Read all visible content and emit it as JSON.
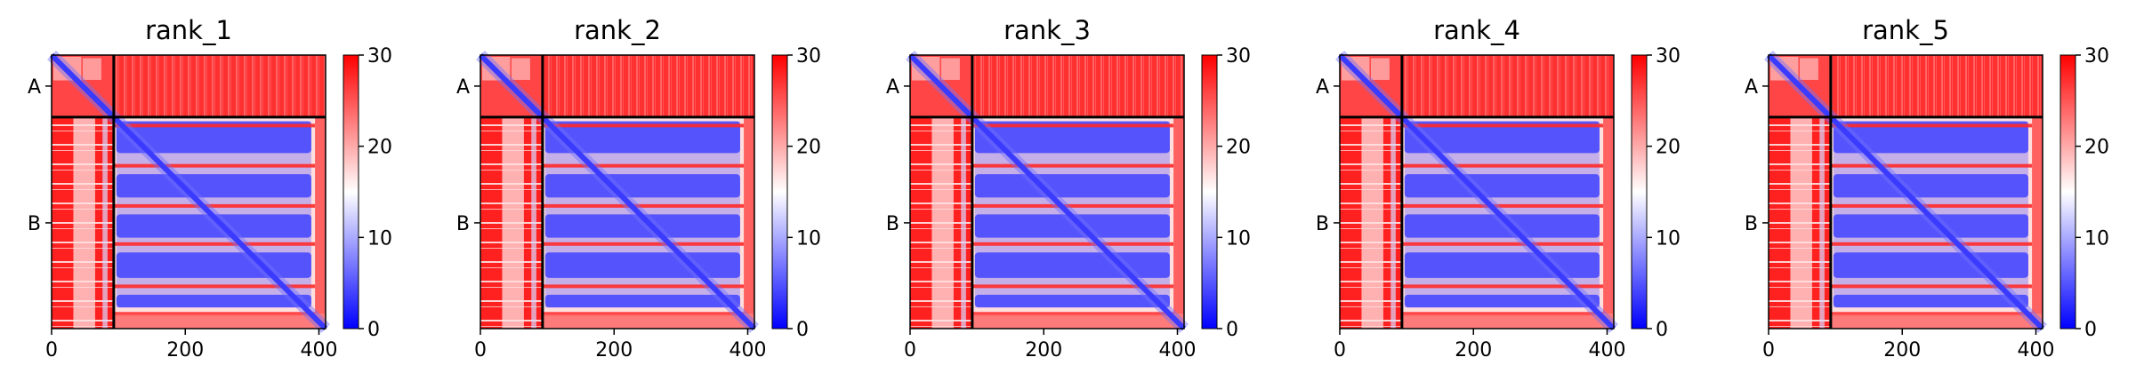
{
  "chart_data": [
    {
      "type": "heatmap",
      "title": "rank_1",
      "chains": [
        "A",
        "B"
      ],
      "chain_boundary": 93,
      "length": 410,
      "xticks": [
        0,
        200,
        400
      ],
      "colorbar": {
        "min": 0,
        "max": 30,
        "ticks": [
          0,
          10,
          20,
          30
        ],
        "colors": [
          "#0000ff",
          "#ffffff",
          "#ff0000"
        ]
      }
    },
    {
      "type": "heatmap",
      "title": "rank_2",
      "chains": [
        "A",
        "B"
      ],
      "chain_boundary": 93,
      "length": 410,
      "xticks": [
        0,
        200,
        400
      ],
      "colorbar": {
        "min": 0,
        "max": 30,
        "ticks": [
          0,
          10,
          20,
          30
        ],
        "colors": [
          "#0000ff",
          "#ffffff",
          "#ff0000"
        ]
      }
    },
    {
      "type": "heatmap",
      "title": "rank_3",
      "chains": [
        "A",
        "B"
      ],
      "chain_boundary": 93,
      "length": 410,
      "xticks": [
        0,
        200,
        400
      ],
      "colorbar": {
        "min": 0,
        "max": 30,
        "ticks": [
          0,
          10,
          20,
          30
        ],
        "colors": [
          "#0000ff",
          "#ffffff",
          "#ff0000"
        ]
      }
    },
    {
      "type": "heatmap",
      "title": "rank_4",
      "chains": [
        "A",
        "B"
      ],
      "chain_boundary": 93,
      "length": 410,
      "xticks": [
        0,
        200,
        400
      ],
      "colorbar": {
        "min": 0,
        "max": 30,
        "ticks": [
          0,
          10,
          20,
          30
        ],
        "colors": [
          "#0000ff",
          "#ffffff",
          "#ff0000"
        ]
      }
    },
    {
      "type": "heatmap",
      "title": "rank_5",
      "chains": [
        "A",
        "B"
      ],
      "chain_boundary": 93,
      "length": 410,
      "xticks": [
        0,
        200,
        400
      ],
      "colorbar": {
        "min": 0,
        "max": 30,
        "ticks": [
          0,
          10,
          20,
          30
        ],
        "colors": [
          "#0000ff",
          "#ffffff",
          "#ff0000"
        ]
      }
    }
  ]
}
